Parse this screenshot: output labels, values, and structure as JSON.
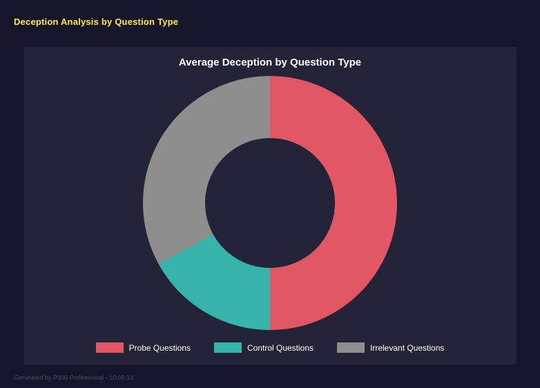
{
  "page": {
    "title": "Deception Analysis by Question Type",
    "footer": "Generated by P300 Professional - 10:05:14"
  },
  "colors": {
    "title_accent": "#ffe93f",
    "panel_bg": "#242438",
    "page_bg": "#16162a"
  },
  "chart_data": {
    "type": "pie",
    "subtype": "donut",
    "title": "Average Deception by Question Type",
    "start_angle_deg": 0,
    "direction": "clockwise",
    "values_are": "percent",
    "legend_position": "bottom",
    "segments": [
      {
        "label": "Probe Questions",
        "value": 50,
        "color": "#e15763"
      },
      {
        "label": "Control Questions",
        "value": 17,
        "color": "#36b3ab"
      },
      {
        "label": "Irrelevant Questions",
        "value": 33,
        "color": "#8e8e8e"
      }
    ]
  }
}
